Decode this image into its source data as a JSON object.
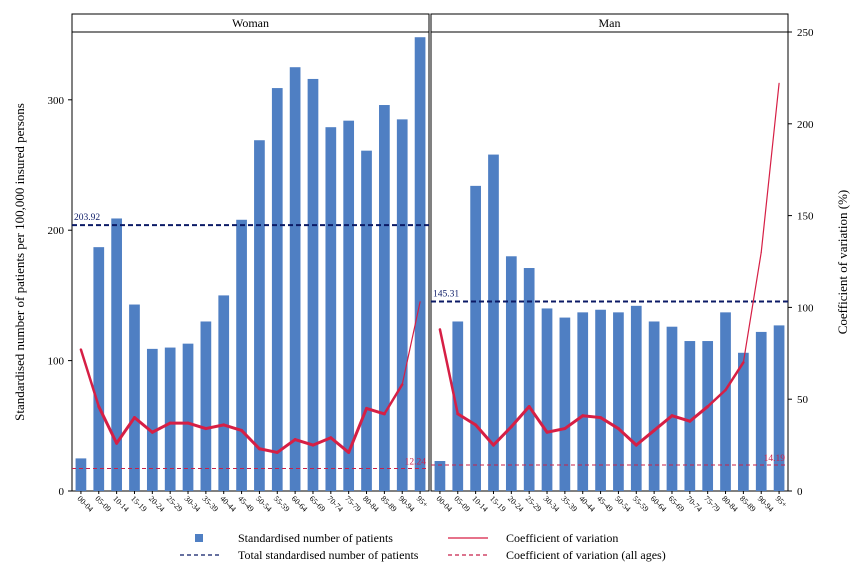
{
  "chart_data": {
    "type": "bar",
    "panels": [
      {
        "title": "Woman",
        "categories": [
          "00-04",
          "05-09",
          "10-14",
          "15-19",
          "20-24",
          "25-29",
          "30-34",
          "35-39",
          "40-44",
          "45-49",
          "50-54",
          "55-59",
          "60-64",
          "65-69",
          "70-74",
          "75-79",
          "80-84",
          "85-89",
          "90-94",
          "95+"
        ],
        "values": [
          25,
          187,
          209,
          143,
          109,
          110,
          113,
          130,
          150,
          208,
          269,
          309,
          325,
          316,
          279,
          284,
          261,
          296,
          285,
          348
        ],
        "cv": [
          77,
          46,
          26,
          40,
          32,
          37,
          37,
          34,
          36,
          33,
          23,
          21,
          28,
          25,
          29,
          21,
          45,
          42,
          58,
          103
        ],
        "total_value": 203.92,
        "total_label": "203.92",
        "cv_all_value": 12.24,
        "cv_all_label": "12.24"
      },
      {
        "title": "Man",
        "categories": [
          "00-04",
          "05-09",
          "10-14",
          "15-19",
          "20-24",
          "25-29",
          "30-34",
          "35-39",
          "40-44",
          "45-49",
          "50-54",
          "55-59",
          "60-64",
          "65-69",
          "70-74",
          "75-79",
          "80-84",
          "85-89",
          "90-94",
          "95+"
        ],
        "values": [
          23,
          130,
          234,
          258,
          180,
          171,
          140,
          133,
          137,
          139,
          137,
          142,
          130,
          126,
          115,
          115,
          137,
          106,
          122,
          127
        ],
        "cv": [
          88,
          42,
          36,
          25,
          35,
          46,
          32,
          34,
          41,
          40,
          34,
          25,
          33,
          41,
          38,
          46,
          55,
          70,
          130,
          222
        ],
        "total_value": 145.31,
        "total_label": "145.31",
        "cv_all_value": 14.19,
        "cv_all_label": "14.19"
      }
    ],
    "ylabel": "Standardised number of patients per 100,000 insured persons",
    "y2label": "Coefficient of variation (%)",
    "ylim": [
      0,
      352
    ],
    "y_ticks": [
      0,
      100,
      200,
      300
    ],
    "y2lim": [
      0,
      250
    ],
    "y2_ticks": [
      0,
      50,
      100,
      150,
      200,
      250
    ],
    "legend": [
      {
        "label": "Standardised number of patients",
        "symbol": "square"
      },
      {
        "label": "Coefficient of variation",
        "symbol": "solid"
      },
      {
        "label": "Total standardised number of patients",
        "symbol": "dash-navy"
      },
      {
        "label": "Coefficient of variation (all ages)",
        "symbol": "dash-red"
      }
    ],
    "colors": {
      "bar": "#4f7fc3",
      "cv_line": "#d61f45",
      "total_line": "#0b1a66",
      "cv_all_line": "#c8204a",
      "axis": "#000000"
    }
  }
}
